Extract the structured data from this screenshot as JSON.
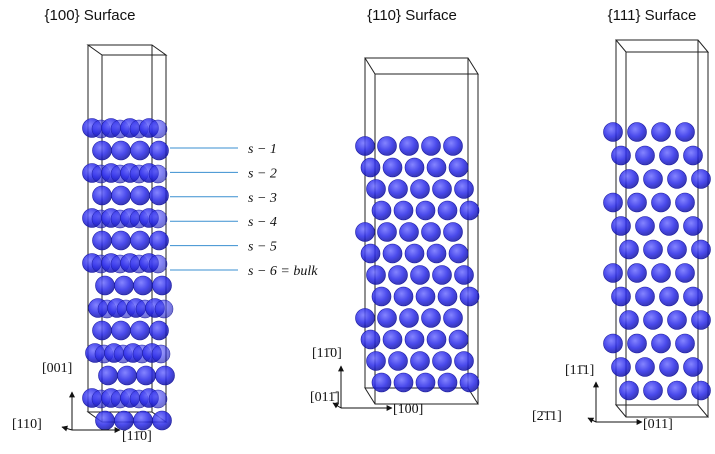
{
  "panels": [
    {
      "title": "{100} Surface",
      "axes": {
        "up": "[001]",
        "left": "[110]",
        "right": "[11̄0]"
      }
    },
    {
      "title": "{110} Surface",
      "axes": {
        "up": "[11̄0]",
        "left": "[011̄]",
        "right": "[100]"
      }
    },
    {
      "title": "{111} Surface",
      "axes": {
        "up": "[11̄1]",
        "left": "[2̄1̄1]",
        "right": "[011]"
      }
    }
  ],
  "layer_labels": [
    "s − 1",
    "s − 2",
    "s − 3",
    "s − 4",
    "s − 5",
    "s − 6 = bulk"
  ]
}
